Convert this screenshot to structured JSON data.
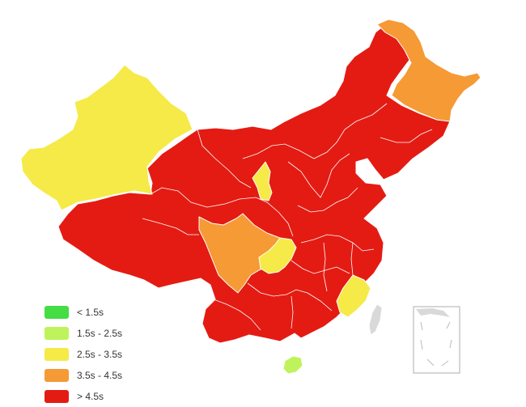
{
  "map": {
    "regions": [
      {
        "name": "xinjiang",
        "bucket": 2
      },
      {
        "name": "tibet",
        "bucket": 4
      },
      {
        "name": "qinghai",
        "bucket": 4
      },
      {
        "name": "gansu",
        "bucket": 4
      },
      {
        "name": "inner-mongolia",
        "bucket": 4
      },
      {
        "name": "heilongjiang",
        "bucket": 3
      },
      {
        "name": "northeast-mainland",
        "bucket": 4
      },
      {
        "name": "sichuan",
        "bucket": 3
      },
      {
        "name": "chongqing",
        "bucket": 2
      },
      {
        "name": "ningxia",
        "bucket": 2
      },
      {
        "name": "fujian",
        "bucket": 2
      },
      {
        "name": "hainan",
        "bucket": 1
      },
      {
        "name": "taiwan",
        "bucket": -1
      },
      {
        "name": "south-china-sea-inset",
        "bucket": -1
      }
    ]
  },
  "legend": [
    {
      "label": "< 1.5s",
      "color": "#44dd44"
    },
    {
      "label": "1.5s - 2.5s",
      "color": "#bff35b"
    },
    {
      "label": "2.5s - 3.5s",
      "color": "#f5ea47"
    },
    {
      "label": "3.5s - 4.5s",
      "color": "#f59a35"
    },
    {
      "label": "> 4.5s",
      "color": "#e41b13"
    }
  ],
  "colors": {
    "no_data": "#d9d9d9",
    "border": "#ffffff"
  }
}
